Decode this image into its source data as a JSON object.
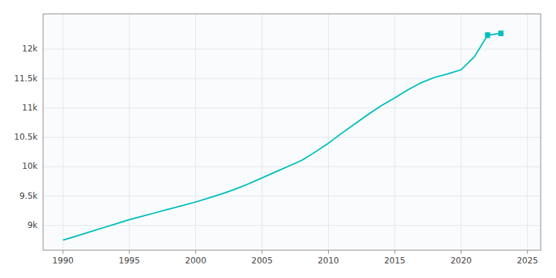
{
  "chart_data": {
    "type": "line",
    "x": [
      1990,
      1991,
      1992,
      1993,
      1994,
      1995,
      1996,
      1997,
      1998,
      1999,
      2000,
      2001,
      2002,
      2003,
      2004,
      2005,
      2006,
      2007,
      2008,
      2009,
      2010,
      2011,
      2012,
      2013,
      2014,
      2015,
      2016,
      2017,
      2018,
      2019,
      2020,
      2021,
      2022,
      2023
    ],
    "series": [
      {
        "type": "line",
        "color": "#00BFBF",
        "values": [
          8751,
          8820,
          8890,
          8960,
          9030,
          9100,
          9160,
          9220,
          9280,
          9340,
          9400,
          9470,
          9540,
          9620,
          9710,
          9810,
          9910,
          10010,
          10110,
          10250,
          10400,
          10570,
          10730,
          10890,
          11040,
          11170,
          11310,
          11430,
          11520,
          11580,
          11650,
          11870,
          12240,
          12270
        ]
      },
      {
        "type": "scatter",
        "color": "#00BFBF",
        "marker": "circle",
        "x": [
          2022,
          2023
        ],
        "values": [
          12240,
          12270
        ],
        "errors": [
          40,
          40
        ]
      }
    ],
    "xlim": [
      1988.5,
      2026
    ],
    "ylim": [
      8580,
      12600
    ],
    "xticks": [
      1990,
      1995,
      2000,
      2005,
      2010,
      2015,
      2020,
      2025
    ],
    "yticks": [
      {
        "value": 9000,
        "label": "9k"
      },
      {
        "value": 9500,
        "label": "9.5k"
      },
      {
        "value": 10000,
        "label": "10k"
      },
      {
        "value": 10500,
        "label": "10.5k"
      },
      {
        "value": 11000,
        "label": "11k"
      },
      {
        "value": 11500,
        "label": "11.5k"
      },
      {
        "value": 12000,
        "label": "12k"
      }
    ],
    "grid": true
  }
}
